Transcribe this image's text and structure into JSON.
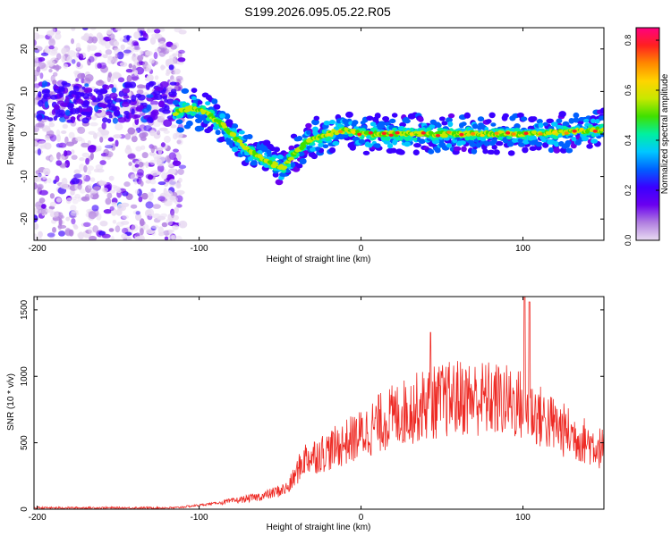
{
  "figure_title": "S199.2026.095.05.22.R05",
  "chart_data": [
    {
      "type": "heatmap",
      "title": "S199.2026.095.05.22.R05",
      "xlabel": "Height of straight line (km)",
      "ylabel": "Frequency (Hz)",
      "xlim": [
        -202,
        150
      ],
      "ylim": [
        -25,
        25
      ],
      "xticks": [
        -200,
        -100,
        0,
        100
      ],
      "yticks": [
        -20,
        -10,
        0,
        10,
        20
      ],
      "colorbar": {
        "label": "Normalized spectral amplitude",
        "range": [
          0,
          0.85
        ],
        "ticks": [
          0.0,
          0.2,
          0.4,
          0.6,
          0.8
        ],
        "colors": [
          "#e9dcf2",
          "#b17fe0",
          "#6a00f0",
          "#3a00ff",
          "#0060ff",
          "#00c8ff",
          "#00f0a0",
          "#40e000",
          "#c8e800",
          "#ffd400",
          "#ff8800",
          "#ff2020",
          "#ff0080"
        ]
      },
      "ridge": {
        "x": [
          -115,
          -105,
          -95,
          -85,
          -75,
          -65,
          -55,
          -48,
          -40,
          -30,
          -20,
          -10,
          0,
          20,
          50,
          100,
          150
        ],
        "freq_hz": [
          5,
          6,
          5,
          2,
          -2,
          -5,
          -7,
          -8,
          -4,
          -1,
          0,
          1,
          0,
          0,
          0,
          0,
          1
        ]
      },
      "noise_region_x": [
        -202,
        -110
      ]
    },
    {
      "type": "line",
      "xlabel": "Height of straight line (km)",
      "ylabel": "SNR (10 * v/v)",
      "xlim": [
        -202,
        150
      ],
      "ylim": [
        0,
        1600
      ],
      "xticks": [
        -200,
        -100,
        0,
        100
      ],
      "yticks": [
        0,
        500,
        1000,
        1500
      ],
      "line_color": "#ee2a24",
      "envelope": {
        "x": [
          -202,
          -150,
          -115,
          -100,
          -80,
          -60,
          -45,
          -35,
          -20,
          0,
          10,
          20,
          40,
          60,
          80,
          95,
          100,
          110,
          130,
          150
        ],
        "snr": [
          10,
          10,
          10,
          30,
          60,
          100,
          160,
          380,
          440,
          560,
          640,
          700,
          790,
          840,
          830,
          800,
          780,
          700,
          560,
          450
        ]
      },
      "peaks": [
        {
          "x": 101,
          "snr": 1600
        },
        {
          "x": 104,
          "snr": 1560
        },
        {
          "x": 43,
          "snr": 1330
        }
      ]
    }
  ]
}
